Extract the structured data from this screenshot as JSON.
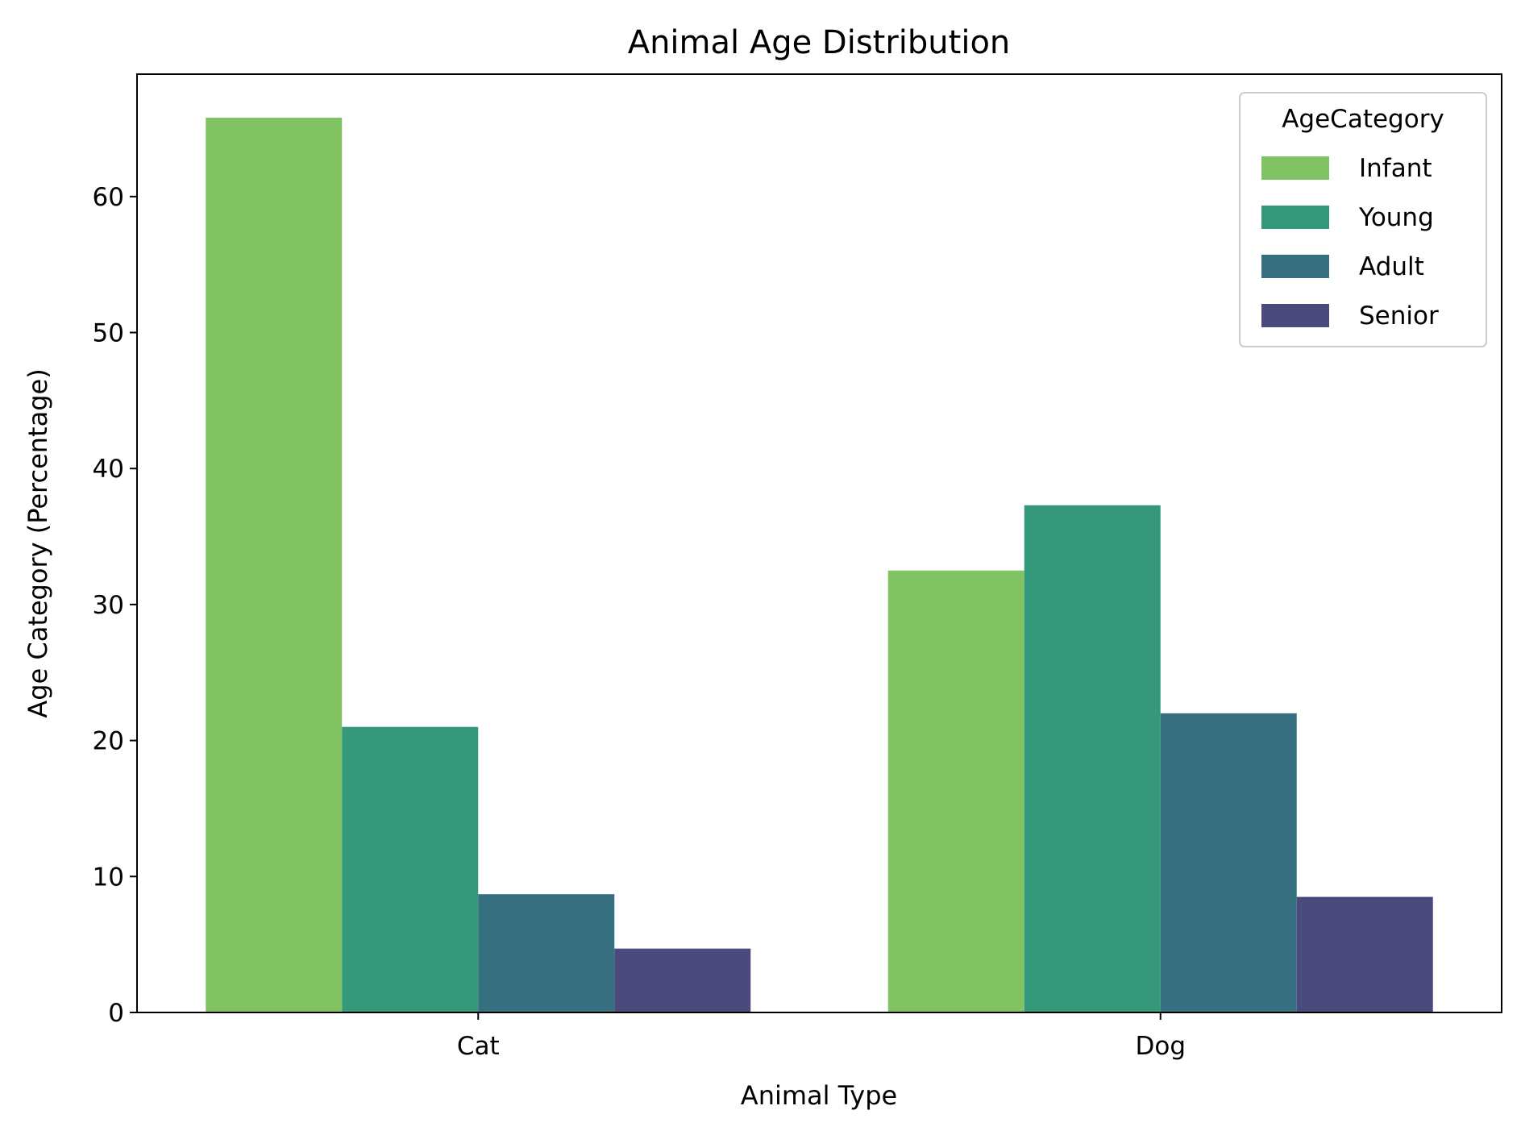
{
  "chart_data": {
    "type": "bar",
    "title": "Animal Age Distribution",
    "xlabel": "Animal Type",
    "ylabel": "Age Category (Percentage)",
    "categories": [
      "Cat",
      "Dog"
    ],
    "series": [
      {
        "name": "Infant",
        "color": "#81c262",
        "values": [
          65.8,
          32.5
        ]
      },
      {
        "name": "Young",
        "color": "#35987b",
        "values": [
          21.0,
          37.3
        ]
      },
      {
        "name": "Adult",
        "color": "#367080",
        "values": [
          8.7,
          22.0
        ]
      },
      {
        "name": "Senior",
        "color": "#4a4a7c",
        "values": [
          4.7,
          8.5
        ]
      }
    ],
    "ylim": [
      0,
      69
    ],
    "yticks": [
      0,
      10,
      20,
      30,
      40,
      50,
      60
    ],
    "grid": false,
    "legend": {
      "title": "AgeCategory",
      "position": "top-right"
    }
  }
}
